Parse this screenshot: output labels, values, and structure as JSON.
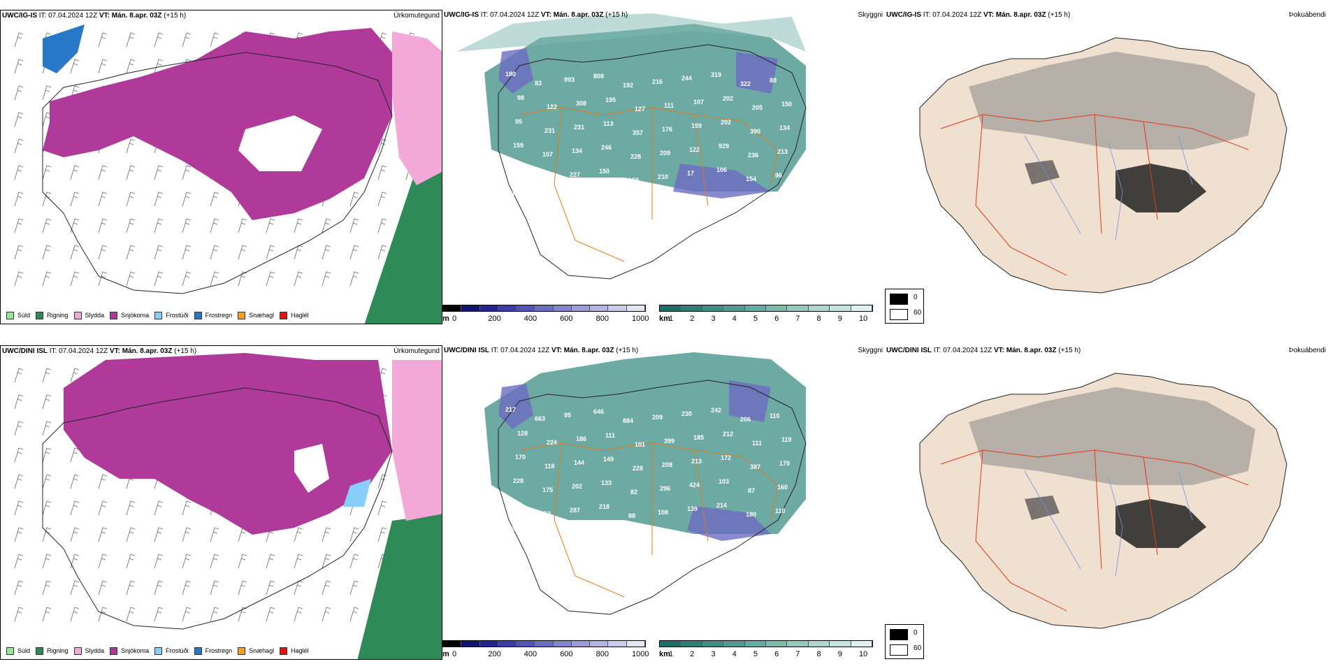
{
  "rows": [
    {
      "model_label": "UWC/IG-IS",
      "init_label": "IT: 07.04.2024 12Z",
      "valid_label": "VT: Mán. 8.apr. 03Z",
      "lead_label": "(+15 h)",
      "cloud_numbers": [
        "180",
        "83",
        "993",
        "808",
        "192",
        "216",
        "244",
        "319",
        "322",
        "88",
        "98",
        "122",
        "308",
        "195",
        "127",
        "111",
        "107",
        "202",
        "205",
        "150",
        "95",
        "231",
        "231",
        "113",
        "357",
        "176",
        "159",
        "202",
        "390",
        "134",
        "159",
        "107",
        "134",
        "246",
        "228",
        "209",
        "122",
        "929",
        "236",
        "213",
        "234",
        "221",
        "227",
        "150",
        "159",
        "210",
        "17",
        "106",
        "154",
        "96",
        "98",
        "95"
      ]
    },
    {
      "model_label": "UWC/DINI ISL",
      "init_label": "IT: 07.04.2024 12Z",
      "valid_label": "VT: Mán. 8.apr. 03Z",
      "lead_label": "(+15 h)",
      "cloud_numbers": [
        "217",
        "663",
        "95",
        "646",
        "884",
        "209",
        "230",
        "242",
        "206",
        "110",
        "128",
        "224",
        "186",
        "111",
        "101",
        "399",
        "185",
        "212",
        "111",
        "119",
        "170",
        "118",
        "144",
        "149",
        "228",
        "208",
        "213",
        "172",
        "387",
        "170",
        "228",
        "175",
        "202",
        "133",
        "82",
        "296",
        "424",
        "103",
        "87",
        "160",
        "268",
        "252",
        "287",
        "218",
        "88",
        "108",
        "139",
        "214",
        "180",
        "110",
        "297",
        "126",
        "103",
        "95",
        "12"
      ]
    }
  ],
  "panel_titles": {
    "precip": "Úrkomutegund",
    "cloud": "Skyggni",
    "fog": "Þokuábendi"
  },
  "precip_legend": [
    {
      "label": "Súld",
      "color": "#90ee90"
    },
    {
      "label": "Rigning",
      "color": "#2e8b57"
    },
    {
      "label": "Slydda",
      "color": "#f4a8d8"
    },
    {
      "label": "Snjókoma",
      "color": "#b03a9a"
    },
    {
      "label": "Frostúði",
      "color": "#87cefa"
    },
    {
      "label": "Frostregn",
      "color": "#2878c8"
    },
    {
      "label": "Snæhagl",
      "color": "#f5a020"
    },
    {
      "label": "Haglél",
      "color": "#e81010"
    }
  ],
  "cloudbase_bar": {
    "unit": "m",
    "ticks": [
      "0",
      "200",
      "400",
      "600",
      "800",
      "1000"
    ],
    "colors": [
      "#000000",
      "#14146e",
      "#242494",
      "#3c3cac",
      "#5454b8",
      "#6c6cc0",
      "#8484cc",
      "#9c9cd6",
      "#b4b4e0",
      "#ccccea",
      "#e4e4f4"
    ]
  },
  "visibility_bar": {
    "unit": "km",
    "ticks": [
      "1",
      "2",
      "3",
      "4",
      "5",
      "6",
      "7",
      "8",
      "9",
      "10"
    ],
    "colors": [
      "#1f6e6a",
      "#2d7e78",
      "#3e8e86",
      "#529c94",
      "#68aaa2",
      "#80b8b0",
      "#98c6c0",
      "#b0d4cf",
      "#c8e2de",
      "#e0f0ee"
    ]
  },
  "fog_key": {
    "low": "0",
    "high": "60",
    "low_color": "#000000",
    "high_color": "#ffffff"
  },
  "map_colors": {
    "snow": "#b03a9a",
    "sleet": "#f4a8d8",
    "rain": "#2e8b57",
    "freezing_rain": "#2878c8",
    "freezing_drizzle": "#87cefa",
    "cloud_field": "#3e8e86",
    "low_cloud": "#6c6cc0",
    "land_fog": "#f0e0d0",
    "roads_orange": "#e07c1a",
    "roads_red": "#e03a1a",
    "rivers": "#7090f0"
  }
}
